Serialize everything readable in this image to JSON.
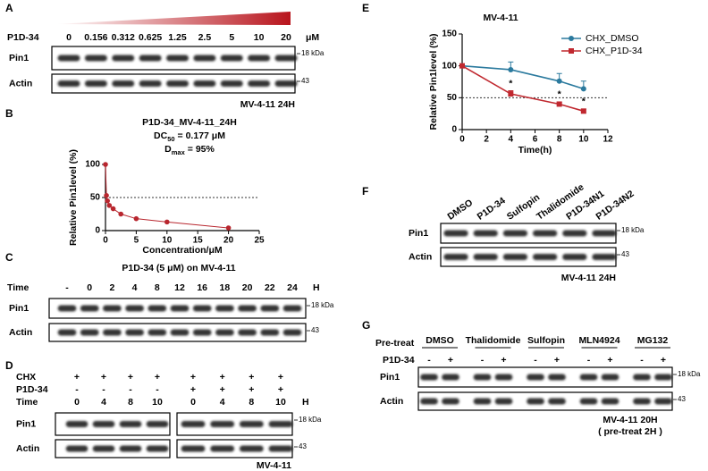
{
  "panel_labels": [
    "A",
    "B",
    "C",
    "D",
    "E",
    "F",
    "G"
  ],
  "blots": {
    "A": {
      "treatment": "P1D-34",
      "lanes": [
        "0",
        "0.156",
        "0.312",
        "0.625",
        "1.25",
        "2.5",
        "5",
        "10",
        "20"
      ],
      "unit": "μM",
      "rows": [
        "Pin1",
        "Actin"
      ],
      "markers": [
        "18 kDa",
        "43"
      ],
      "caption": "MV-4-11 24H"
    },
    "C": {
      "title": "P1D-34 (5 μM) on MV-4-11",
      "lane_header": "Time",
      "lanes": [
        "-",
        "0",
        "2",
        "4",
        "8",
        "12",
        "16",
        "18",
        "20",
        "22",
        "24"
      ],
      "unit": "H",
      "rows": [
        "Pin1",
        "Actin"
      ],
      "markers": [
        "18 kDa",
        "43"
      ]
    },
    "D": {
      "conditions": [
        {
          "label": "CHX",
          "values": [
            "+",
            "+",
            "+",
            "+",
            "+",
            "+",
            "+",
            "+"
          ]
        },
        {
          "label": "P1D-34",
          "values": [
            "-",
            "-",
            "-",
            "-",
            "+",
            "+",
            "+",
            "+"
          ]
        },
        {
          "label": "Time",
          "values": [
            "0",
            "4",
            "8",
            "10",
            "0",
            "4",
            "8",
            "10"
          ]
        }
      ],
      "unit": "H",
      "rows": [
        "Pin1",
        "Actin"
      ],
      "markers": [
        "18 kDa",
        "43"
      ],
      "caption": "MV-4-11"
    },
    "F": {
      "lanes": [
        "DMSO",
        "P1D-34",
        "Sulfopin",
        "Thalidomide",
        "P1D-34N1",
        "P1D-34N2"
      ],
      "rows": [
        "Pin1",
        "Actin"
      ],
      "markers": [
        "18 kDa",
        "43"
      ],
      "caption": "MV-4-11 24H"
    },
    "G": {
      "pretreat_label": "Pre-treat",
      "groups": [
        "DMSO",
        "Thalidomide",
        "Sulfopin",
        "MLN4924",
        "MG132"
      ],
      "treatment_label": "P1D-34",
      "signs": [
        "-",
        "+",
        "-",
        "+",
        "-",
        "+",
        "-",
        "+",
        "-",
        "+"
      ],
      "rows": [
        "Pin1",
        "Actin"
      ],
      "markers": [
        "18 kDa",
        "43"
      ],
      "caption": [
        "MV-4-11 20H",
        "( pre-treat 2H )"
      ]
    }
  },
  "chart_data": [
    {
      "type": "scatter",
      "title": "P1D-34_MV-4-11_24H",
      "stats": [
        {
          "text": "DC",
          "sub": "50",
          "rest": "= 0.177 μM"
        },
        {
          "text": "D",
          "sub": "max",
          "rest": "= 95%"
        }
      ],
      "x": [
        0,
        0.156,
        0.312,
        0.625,
        1.25,
        2.5,
        5,
        10,
        20
      ],
      "values": [
        100,
        53,
        45,
        38,
        33,
        25,
        18,
        13,
        4
      ],
      "color": "#b8262e",
      "x_label": "Concentration/μM",
      "y_label": "Relative Pin1level (%)",
      "xlim": [
        0,
        25
      ],
      "xticks": [
        0,
        5,
        10,
        15,
        20,
        25
      ],
      "ylim": [
        0,
        100
      ],
      "yticks": [
        0,
        50,
        100
      ],
      "reference_line": 50
    },
    {
      "type": "line",
      "title": "MV-4-11",
      "x": [
        0,
        4,
        8,
        10
      ],
      "series": [
        {
          "name": "CHX_DMSO",
          "color": "#2b7a9e",
          "marker": "circle",
          "values": [
            100,
            94,
            76,
            64
          ],
          "errors": [
            0,
            12,
            12,
            12
          ]
        },
        {
          "name": "CHX_P1D-34",
          "color": "#c0282f",
          "marker": "square",
          "values": [
            100,
            56,
            40,
            29
          ],
          "errors": [
            0,
            5,
            3,
            3
          ]
        }
      ],
      "significance": {
        "x": [
          4,
          8,
          10
        ],
        "labels": [
          "*",
          "*",
          "*"
        ]
      },
      "x_label": "Time(h)",
      "y_label": "Relative Pin1level (%)",
      "xlim": [
        0,
        12
      ],
      "xticks": [
        0,
        2,
        4,
        6,
        8,
        10,
        12
      ],
      "ylim": [
        0,
        150
      ],
      "yticks": [
        0,
        50,
        100,
        150
      ],
      "reference_line": 50,
      "legend": "upper right"
    }
  ]
}
